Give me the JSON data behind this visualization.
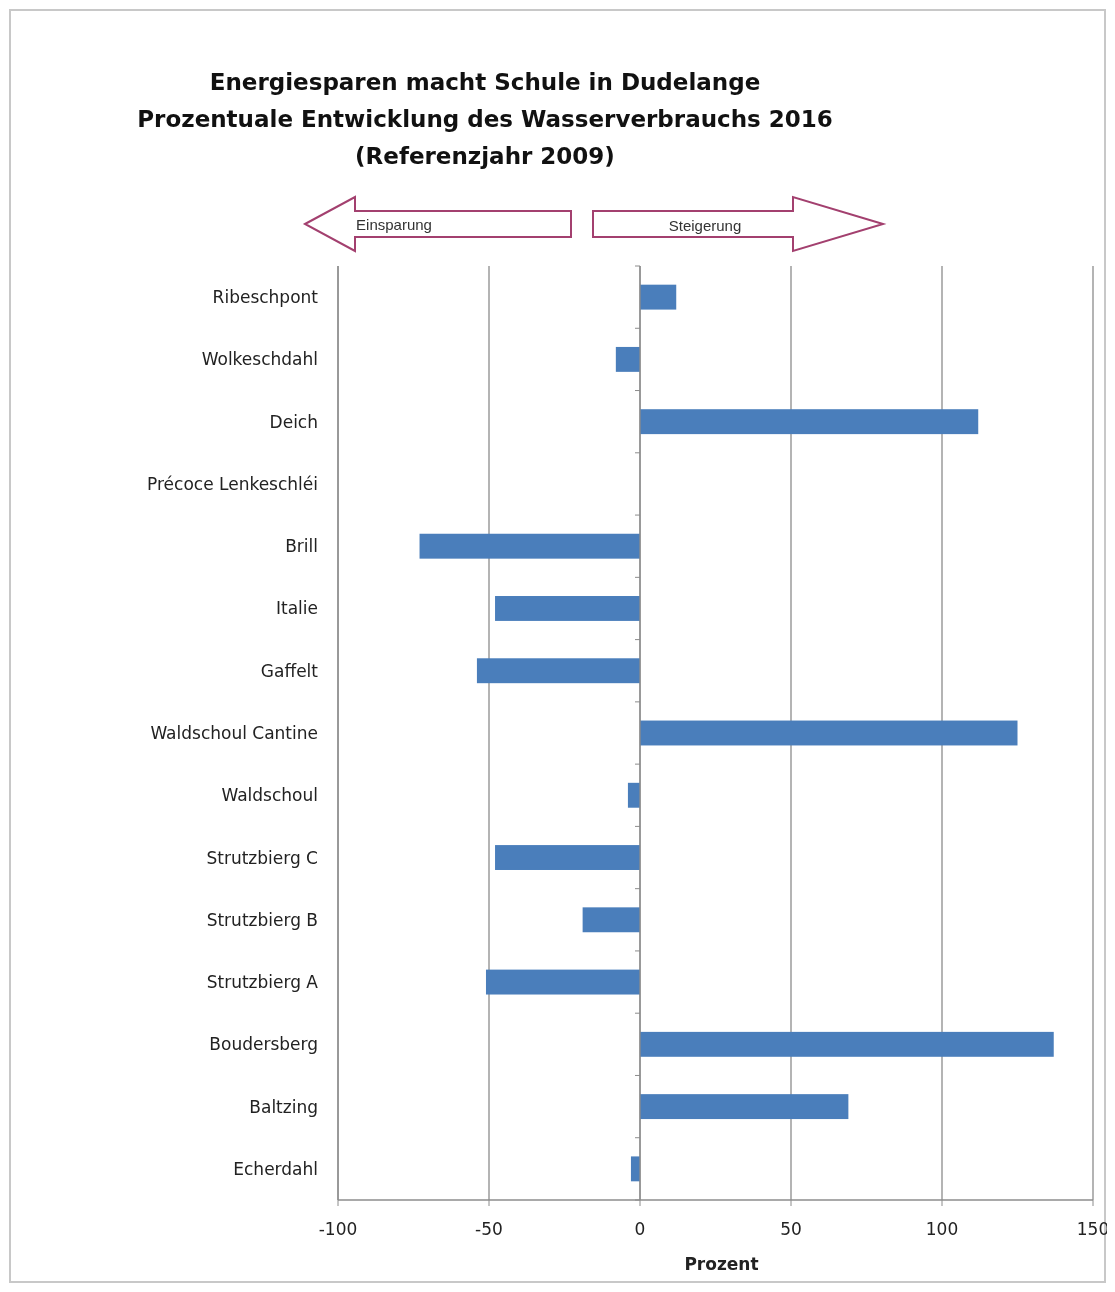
{
  "chart_data": {
    "type": "bar",
    "orientation": "horizontal",
    "title": "Energiesparen macht Schule in Dudelange\nProzentuale Entwicklung des Wasserverbrauchs 2016\n(Referenzjahr 2009)",
    "xlabel": "Prozent",
    "categories": [
      "Ribeschpont",
      "Wolkeschdahl",
      "Deich",
      "Précoce Lenkeschléi",
      "Brill",
      "Italie",
      "Gaffelt",
      "Waldschoul Cantine",
      "Waldschoul",
      "Strutzbierg C",
      "Strutzbierg B",
      "Strutzbierg A",
      "Boudersberg",
      "Baltzing",
      "Echerdahl"
    ],
    "values": [
      12,
      -8,
      112,
      null,
      -73,
      -48,
      -54,
      125,
      -4,
      -48,
      -19,
      -51,
      137,
      69,
      -3
    ],
    "color": "#4a7ebb",
    "xlim": [
      -100,
      150
    ],
    "xticks": [
      -100,
      -50,
      0,
      50,
      100,
      150
    ],
    "grid": "x",
    "annotations": [
      "Einsparung",
      "Steigerung"
    ]
  }
}
